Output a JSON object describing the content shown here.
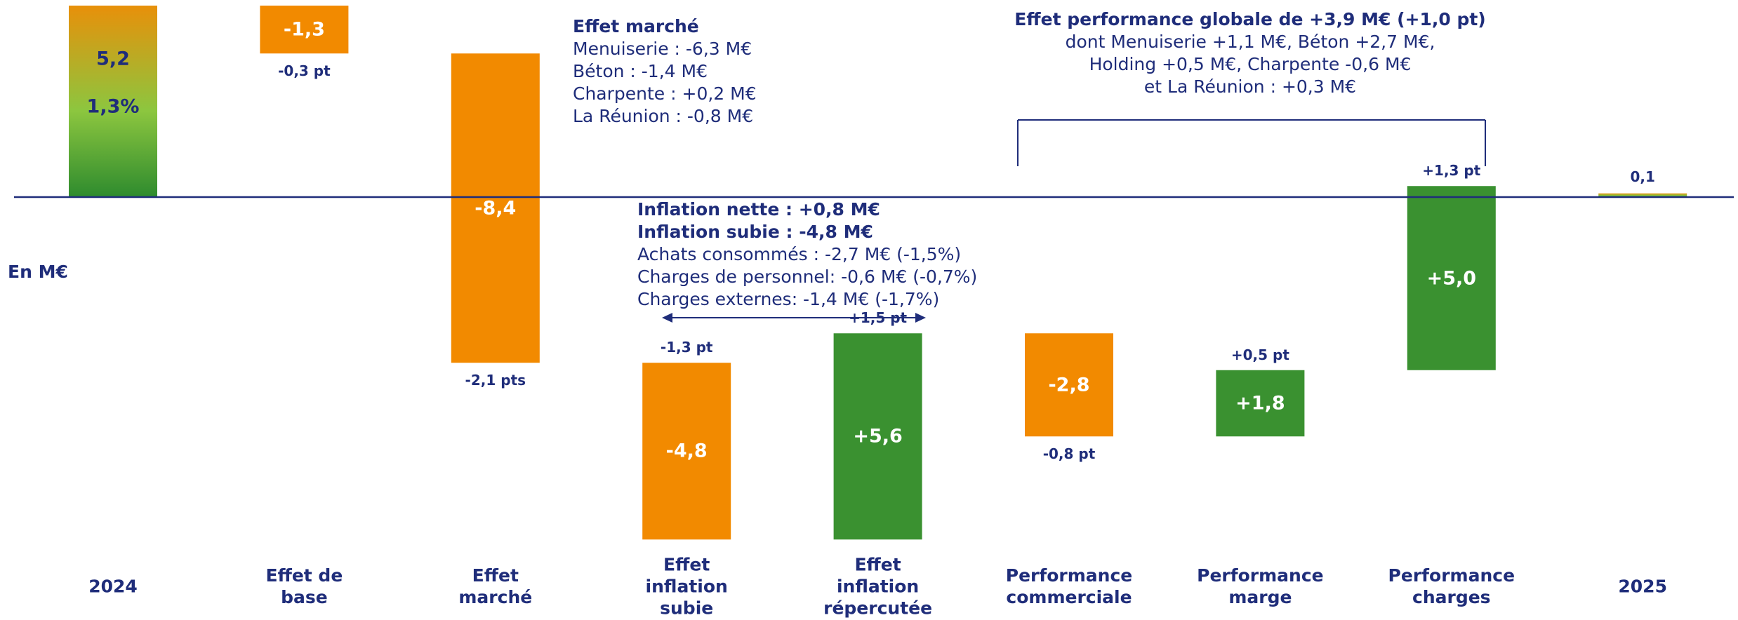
{
  "chart_data": {
    "type": "waterfall",
    "y_label": "En M€",
    "categories": [
      "2024",
      "Effet de\nbase",
      "Effet\nmarché",
      "Effet\ninflation\nsubie",
      "Effet\ninflation\nrépercutée",
      "Performance\ncommerciale",
      "Performance\nmarge",
      "Performance\ncharges",
      "2025"
    ],
    "values": [
      5.2,
      -1.3,
      -8.4,
      -4.8,
      5.6,
      -2.8,
      1.8,
      5.0,
      0.1
    ],
    "value_labels": [
      "5,2",
      "-1,3",
      "-8,4",
      "-4,8",
      "+5,6",
      "-2,8",
      "+1,8",
      "+5,0",
      "0,1"
    ],
    "totals": [
      true,
      false,
      false,
      false,
      false,
      false,
      false,
      false,
      true
    ],
    "margin_labels": [
      "1,3%",
      "-0,3 pt",
      "-2,1 pts",
      "-1,3 pt",
      "+1,5 pt",
      "-0,8 pt",
      "+0,5 pt",
      "+1,3 pt",
      null
    ],
    "colors": {
      "increase": "#3a9130",
      "decrease": "#f28a00",
      "total": [
        "#e8900a",
        "#8cc63f",
        "#2e8b2e"
      ]
    },
    "ylim": [
      -9.5,
      5.3
    ],
    "annotations": [
      {
        "title": "Effet marché",
        "lines": [
          "Menuiserie : -6,3 M€",
          "Béton : -1,4 M€",
          "Charpente : +0,2 M€",
          "La Réunion : -0,8 M€"
        ]
      },
      {
        "title": "Inflation nette : +0,8 M€",
        "lines": [
          "Inflation subie : -4,8 M€",
          "Achats consommés : -2,7 M€ (-1,5%)",
          "Charges de personnel: -0,6 M€ (-0,7%)",
          "Charges externes: -1,4 M€ (-1,7%)"
        ]
      },
      {
        "title": "Effet performance globale de +3,9 M€ (+1,0 pt)",
        "lines": [
          "dont Menuiserie +1,1 M€, Béton +2,7 M€,",
          "Holding +0,5 M€, Charpente -0,6 M€",
          "et La Réunion : +0,3 M€"
        ]
      }
    ]
  }
}
